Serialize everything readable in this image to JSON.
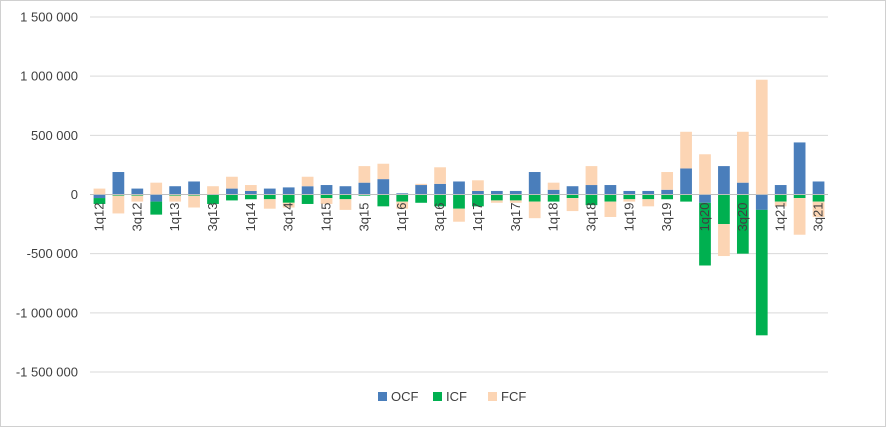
{
  "chart_data": {
    "type": "bar",
    "title": "",
    "xlabel": "",
    "ylabel": "",
    "ylim": [
      -1500000,
      1500000
    ],
    "yticks": [
      1500000,
      1000000,
      500000,
      0,
      -500000,
      -1000000,
      -1500000
    ],
    "ytick_labels": [
      "1 500 000",
      "1 000 000",
      "500 000",
      "0",
      "-500 000",
      "-1 000 000",
      "-1 500 000"
    ],
    "grid": true,
    "legend_position": "bottom",
    "categories": [
      "1q12",
      "2q12",
      "3q12",
      "4q12",
      "1q13",
      "2q13",
      "3q13",
      "4q13",
      "1q14",
      "2q14",
      "3q14",
      "4q14",
      "1q15",
      "2q15",
      "3q15",
      "4q15",
      "1q16",
      "2q16",
      "3q16",
      "4q16",
      "1q17",
      "2q17",
      "3q17",
      "4q17",
      "1q18",
      "2q18",
      "3q18",
      "4q18",
      "1q19",
      "2q19",
      "3q19",
      "4q19",
      "1q20",
      "2q20",
      "3q20",
      "4q20",
      "1q21",
      "2q21",
      "3q21"
    ],
    "xtick_labels": [
      "1q12",
      "3q12",
      "1q13",
      "3q13",
      "1q14",
      "3q14",
      "1q15",
      "3q15",
      "1q16",
      "3q16",
      "1q17",
      "3q17",
      "1q18",
      "3q18",
      "1q19",
      "3q19",
      "1q20",
      "3q20",
      "1q21",
      "3q21"
    ],
    "series": [
      {
        "name": "OCF",
        "color": "#4a7ebb",
        "values": [
          -30000,
          190000,
          50000,
          -60000,
          70000,
          110000,
          0,
          50000,
          30000,
          50000,
          60000,
          70000,
          80000,
          70000,
          100000,
          130000,
          10000,
          80000,
          90000,
          110000,
          30000,
          30000,
          30000,
          190000,
          40000,
          70000,
          80000,
          80000,
          30000,
          30000,
          40000,
          220000,
          -70000,
          240000,
          100000,
          -130000,
          80000,
          440000,
          110000
        ]
      },
      {
        "name": "ICF",
        "color": "#00b050",
        "values": [
          -50000,
          -10000,
          -10000,
          -110000,
          -10000,
          -10000,
          -80000,
          -50000,
          -40000,
          -40000,
          -70000,
          -80000,
          -30000,
          -40000,
          -10000,
          -100000,
          -60000,
          -70000,
          -100000,
          -120000,
          -100000,
          -50000,
          -50000,
          -60000,
          -60000,
          -30000,
          -90000,
          -60000,
          -40000,
          -40000,
          -40000,
          -60000,
          -530000,
          -250000,
          -500000,
          -1060000,
          -60000,
          -30000,
          -60000
        ]
      },
      {
        "name": "FCF",
        "color": "#fcd5b4",
        "values": [
          50000,
          -150000,
          -50000,
          100000,
          -50000,
          -100000,
          70000,
          100000,
          50000,
          -80000,
          -40000,
          80000,
          -50000,
          -90000,
          140000,
          130000,
          -60000,
          10000,
          140000,
          -110000,
          90000,
          -20000,
          -20000,
          -140000,
          60000,
          -110000,
          160000,
          -130000,
          -20000,
          -60000,
          150000,
          310000,
          340000,
          -270000,
          430000,
          970000,
          -40000,
          -310000,
          -130000
        ]
      }
    ]
  }
}
